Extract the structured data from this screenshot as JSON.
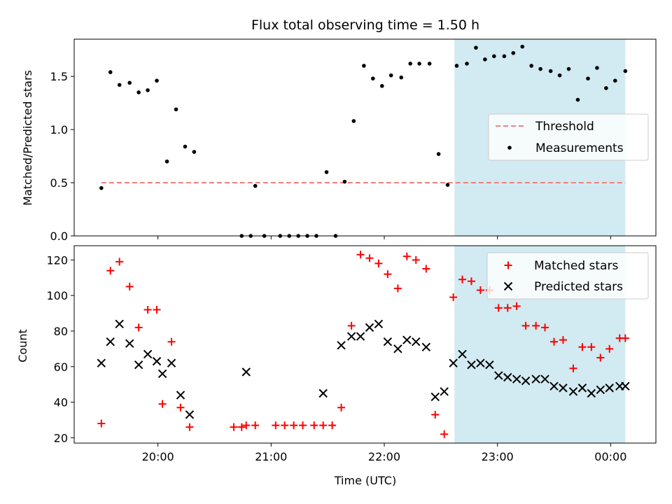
{
  "colors": {
    "threshold": "#f08080",
    "measurement": "#000000",
    "matched": "#ff0000",
    "predicted": "#000000",
    "highlight": "#add8e6"
  },
  "chart_data": [
    {
      "type": "scatter",
      "title": "Flux total observing time = 1.50 h",
      "xlabel": "",
      "ylabel": "Matched/Predicted stars",
      "x_unit": "hours (UTC)",
      "xlim": [
        19.26,
        24.4
      ],
      "ylim": [
        0.0,
        1.85
      ],
      "yticks": [
        0.0,
        0.5,
        1.0,
        1.5
      ],
      "ytick_labels": [
        "0.0",
        "0.5",
        "1.0",
        "1.5"
      ],
      "highlight_span": [
        22.62,
        24.13
      ],
      "threshold": {
        "name": "Threshold",
        "y": 0.5,
        "x_range": [
          19.5,
          24.13
        ]
      },
      "legend": {
        "placement": "right",
        "entries": [
          "Threshold",
          "Measurements"
        ]
      },
      "series": [
        {
          "name": "Measurements",
          "x": [
            19.5,
            19.58,
            19.66,
            19.75,
            19.83,
            19.91,
            19.99,
            20.08,
            20.16,
            20.24,
            20.32,
            20.74,
            20.82,
            20.86,
            20.94,
            21.08,
            21.16,
            21.24,
            21.32,
            21.4,
            21.49,
            21.57,
            21.65,
            21.73,
            21.82,
            21.9,
            21.98,
            22.06,
            22.15,
            22.23,
            22.31,
            22.4,
            22.48,
            22.56,
            22.64,
            22.73,
            22.81,
            22.89,
            22.97,
            23.06,
            23.14,
            23.22,
            23.3,
            23.38,
            23.47,
            23.55,
            23.63,
            23.71,
            23.8,
            23.88,
            23.96,
            24.04,
            24.13
          ],
          "y": [
            0.45,
            1.54,
            1.42,
            1.44,
            1.35,
            1.37,
            1.46,
            0.7,
            1.19,
            0.84,
            0.79,
            0.0,
            0.0,
            0.47,
            0.0,
            0.0,
            0.0,
            0.0,
            0.0,
            0.0,
            0.6,
            0.0,
            0.51,
            1.08,
            1.6,
            1.48,
            1.41,
            1.51,
            1.49,
            1.62,
            1.62,
            1.62,
            0.77,
            0.48,
            1.6,
            1.62,
            1.77,
            1.66,
            1.69,
            1.69,
            1.72,
            1.78,
            1.6,
            1.57,
            1.55,
            1.51,
            1.57,
            1.28,
            1.48,
            1.58,
            1.39,
            1.46,
            1.55
          ]
        }
      ]
    },
    {
      "type": "scatter",
      "title": "",
      "xlabel": "Time (UTC)",
      "ylabel": "Count",
      "x_unit": "hours (UTC)",
      "xlim": [
        19.26,
        24.4
      ],
      "ylim": [
        17.0,
        128.0
      ],
      "yticks": [
        20,
        40,
        60,
        80,
        100,
        120
      ],
      "ytick_labels": [
        "20",
        "40",
        "60",
        "80",
        "100",
        "120"
      ],
      "xticks": [
        20.0,
        21.0,
        22.0,
        23.0,
        24.0
      ],
      "xtick_labels": [
        "20:00",
        "21:00",
        "22:00",
        "23:00",
        "00:00"
      ],
      "highlight_span": [
        22.62,
        24.13
      ],
      "legend": {
        "placement": "top-right",
        "entries": [
          "Matched stars",
          "Predicted stars"
        ]
      },
      "series": [
        {
          "name": "Matched stars",
          "marker": "plus",
          "x": [
            19.5,
            19.58,
            19.66,
            19.75,
            19.83,
            19.91,
            19.99,
            20.04,
            20.12,
            20.2,
            20.28,
            20.67,
            20.74,
            20.78,
            20.86,
            21.04,
            21.12,
            21.2,
            21.28,
            21.38,
            21.46,
            21.54,
            21.62,
            21.71,
            21.79,
            21.87,
            21.95,
            22.03,
            22.12,
            22.2,
            22.28,
            22.37,
            22.45,
            22.53,
            22.61,
            22.69,
            22.77,
            22.85,
            22.93,
            23.01,
            23.09,
            23.17,
            23.25,
            23.34,
            23.42,
            23.5,
            23.58,
            23.67,
            23.75,
            23.83,
            23.91,
            23.99,
            24.08,
            24.13
          ],
          "y": [
            28,
            114,
            119,
            105,
            82,
            92,
            92,
            39,
            74,
            37,
            26,
            26,
            26,
            27,
            27,
            27,
            27,
            27,
            27,
            27,
            27,
            27,
            37,
            83,
            123,
            121,
            118,
            112,
            104,
            122,
            120,
            115,
            33,
            22,
            99,
            109,
            108,
            103,
            103,
            93,
            93,
            94,
            83,
            83,
            82,
            74,
            75,
            59,
            71,
            71,
            65,
            70,
            76,
            76
          ]
        },
        {
          "name": "Predicted stars",
          "marker": "x",
          "x": [
            19.5,
            19.58,
            19.66,
            19.75,
            19.83,
            19.91,
            19.99,
            20.04,
            20.12,
            20.2,
            20.28,
            20.78,
            21.46,
            21.62,
            21.71,
            21.79,
            21.87,
            21.95,
            22.03,
            22.12,
            22.2,
            22.28,
            22.37,
            22.45,
            22.53,
            22.61,
            22.69,
            22.77,
            22.85,
            22.93,
            23.01,
            23.09,
            23.17,
            23.25,
            23.34,
            23.42,
            23.5,
            23.58,
            23.67,
            23.75,
            23.83,
            23.91,
            23.99,
            24.08,
            24.13
          ],
          "y": [
            62,
            74,
            84,
            73,
            61,
            67,
            63,
            56,
            62,
            44,
            33,
            57,
            45,
            72,
            77,
            77,
            82,
            84,
            74,
            70,
            75,
            74,
            71,
            43,
            46,
            62,
            67,
            61,
            62,
            61,
            55,
            54,
            53,
            52,
            53,
            53,
            49,
            48,
            46,
            48,
            45,
            47,
            48,
            49,
            49
          ]
        }
      ]
    }
  ]
}
